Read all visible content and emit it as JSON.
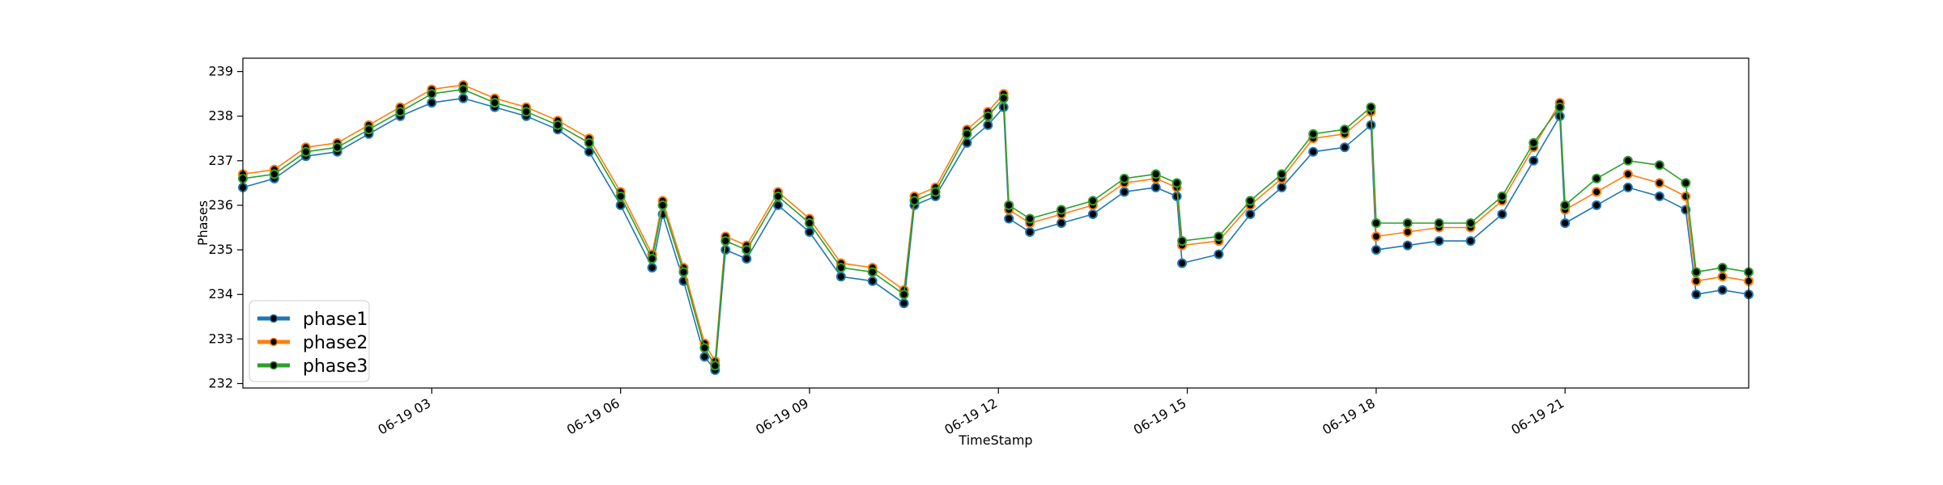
{
  "chart_data": {
    "type": "line",
    "title": "",
    "xlabel": "TimeStamp",
    "ylabel": "Phases",
    "x_axis": {
      "start": "06-19 00:00",
      "end": "06-19 23:55",
      "tick_labels": [
        "06-19 03",
        "06-19 06",
        "06-19 09",
        "06-19 12",
        "06-19 15",
        "06-19 18",
        "06-19 21"
      ]
    },
    "ylim": [
      231.9,
      239.3
    ],
    "yticks": [
      232,
      233,
      234,
      235,
      236,
      237,
      238,
      239
    ],
    "grid": false,
    "legend": {
      "placement": "lower-left"
    },
    "series": [
      {
        "name": "phase1",
        "color": "#1f77b4",
        "points": [
          [
            "00:00",
            236.4
          ],
          [
            "00:30",
            236.6
          ],
          [
            "01:00",
            237.1
          ],
          [
            "01:30",
            237.2
          ],
          [
            "02:00",
            237.6
          ],
          [
            "02:30",
            238.0
          ],
          [
            "03:00",
            238.3
          ],
          [
            "03:30",
            238.4
          ],
          [
            "04:00",
            238.2
          ],
          [
            "04:30",
            238.0
          ],
          [
            "05:00",
            237.7
          ],
          [
            "05:30",
            237.2
          ],
          [
            "06:00",
            236.0
          ],
          [
            "06:30",
            234.6
          ],
          [
            "06:40",
            235.8
          ],
          [
            "07:00",
            234.3
          ],
          [
            "07:20",
            232.6
          ],
          [
            "07:30",
            232.3
          ],
          [
            "07:40",
            235.0
          ],
          [
            "08:00",
            234.8
          ],
          [
            "08:30",
            236.0
          ],
          [
            "09:00",
            235.4
          ],
          [
            "09:30",
            234.4
          ],
          [
            "10:00",
            234.3
          ],
          [
            "10:30",
            233.8
          ],
          [
            "10:40",
            236.0
          ],
          [
            "11:00",
            236.2
          ],
          [
            "11:30",
            237.4
          ],
          [
            "11:50",
            237.8
          ],
          [
            "12:05",
            238.2
          ],
          [
            "12:10",
            235.7
          ],
          [
            "12:30",
            235.4
          ],
          [
            "13:00",
            235.6
          ],
          [
            "13:30",
            235.8
          ],
          [
            "14:00",
            236.3
          ],
          [
            "14:30",
            236.4
          ],
          [
            "14:50",
            236.2
          ],
          [
            "14:55",
            234.7
          ],
          [
            "15:30",
            234.9
          ],
          [
            "16:00",
            235.8
          ],
          [
            "16:30",
            236.4
          ],
          [
            "17:00",
            237.2
          ],
          [
            "17:30",
            237.3
          ],
          [
            "17:55",
            237.8
          ],
          [
            "18:00",
            235.0
          ],
          [
            "18:30",
            235.1
          ],
          [
            "19:00",
            235.2
          ],
          [
            "19:30",
            235.2
          ],
          [
            "20:00",
            235.8
          ],
          [
            "20:30",
            237.0
          ],
          [
            "20:55",
            238.0
          ],
          [
            "21:00",
            235.6
          ],
          [
            "21:30",
            236.0
          ],
          [
            "22:00",
            236.4
          ],
          [
            "22:30",
            236.2
          ],
          [
            "22:55",
            235.9
          ],
          [
            "23:05",
            234.0
          ],
          [
            "23:30",
            234.1
          ],
          [
            "23:55",
            234.0
          ]
        ]
      },
      {
        "name": "phase2",
        "color": "#ff7f0e",
        "points": [
          [
            "00:00",
            236.7
          ],
          [
            "00:30",
            236.8
          ],
          [
            "01:00",
            237.3
          ],
          [
            "01:30",
            237.4
          ],
          [
            "02:00",
            237.8
          ],
          [
            "02:30",
            238.2
          ],
          [
            "03:00",
            238.6
          ],
          [
            "03:30",
            238.7
          ],
          [
            "04:00",
            238.4
          ],
          [
            "04:30",
            238.2
          ],
          [
            "05:00",
            237.9
          ],
          [
            "05:30",
            237.5
          ],
          [
            "06:00",
            236.3
          ],
          [
            "06:30",
            234.9
          ],
          [
            "06:40",
            236.1
          ],
          [
            "07:00",
            234.6
          ],
          [
            "07:20",
            232.9
          ],
          [
            "07:30",
            232.5
          ],
          [
            "07:40",
            235.3
          ],
          [
            "08:00",
            235.1
          ],
          [
            "08:30",
            236.3
          ],
          [
            "09:00",
            235.7
          ],
          [
            "09:30",
            234.7
          ],
          [
            "10:00",
            234.6
          ],
          [
            "10:30",
            234.1
          ],
          [
            "10:40",
            236.2
          ],
          [
            "11:00",
            236.4
          ],
          [
            "11:30",
            237.7
          ],
          [
            "11:50",
            238.1
          ],
          [
            "12:05",
            238.5
          ],
          [
            "12:10",
            235.9
          ],
          [
            "12:30",
            235.6
          ],
          [
            "13:00",
            235.8
          ],
          [
            "13:30",
            236.0
          ],
          [
            "14:00",
            236.5
          ],
          [
            "14:30",
            236.6
          ],
          [
            "14:50",
            236.4
          ],
          [
            "14:55",
            235.1
          ],
          [
            "15:30",
            235.2
          ],
          [
            "16:00",
            236.0
          ],
          [
            "16:30",
            236.6
          ],
          [
            "17:00",
            237.5
          ],
          [
            "17:30",
            237.6
          ],
          [
            "17:55",
            238.1
          ],
          [
            "18:00",
            235.3
          ],
          [
            "18:30",
            235.4
          ],
          [
            "19:00",
            235.5
          ],
          [
            "19:30",
            235.5
          ],
          [
            "20:00",
            236.1
          ],
          [
            "20:30",
            237.3
          ],
          [
            "20:55",
            238.3
          ],
          [
            "21:00",
            235.9
          ],
          [
            "21:30",
            236.3
          ],
          [
            "22:00",
            236.7
          ],
          [
            "22:30",
            236.5
          ],
          [
            "22:55",
            236.2
          ],
          [
            "23:05",
            234.3
          ],
          [
            "23:30",
            234.4
          ],
          [
            "23:55",
            234.3
          ]
        ]
      },
      {
        "name": "phase3",
        "color": "#2ca02c",
        "points": [
          [
            "00:00",
            236.6
          ],
          [
            "00:30",
            236.7
          ],
          [
            "01:00",
            237.2
          ],
          [
            "01:30",
            237.3
          ],
          [
            "02:00",
            237.7
          ],
          [
            "02:30",
            238.1
          ],
          [
            "03:00",
            238.5
          ],
          [
            "03:30",
            238.6
          ],
          [
            "04:00",
            238.3
          ],
          [
            "04:30",
            238.1
          ],
          [
            "05:00",
            237.8
          ],
          [
            "05:30",
            237.4
          ],
          [
            "06:00",
            236.2
          ],
          [
            "06:30",
            234.8
          ],
          [
            "06:40",
            236.0
          ],
          [
            "07:00",
            234.5
          ],
          [
            "07:20",
            232.8
          ],
          [
            "07:30",
            232.4
          ],
          [
            "07:40",
            235.2
          ],
          [
            "08:00",
            235.0
          ],
          [
            "08:30",
            236.2
          ],
          [
            "09:00",
            235.6
          ],
          [
            "09:30",
            234.6
          ],
          [
            "10:00",
            234.5
          ],
          [
            "10:30",
            234.0
          ],
          [
            "10:40",
            236.1
          ],
          [
            "11:00",
            236.3
          ],
          [
            "11:30",
            237.6
          ],
          [
            "11:50",
            238.0
          ],
          [
            "12:05",
            238.4
          ],
          [
            "12:10",
            236.0
          ],
          [
            "12:30",
            235.7
          ],
          [
            "13:00",
            235.9
          ],
          [
            "13:30",
            236.1
          ],
          [
            "14:00",
            236.6
          ],
          [
            "14:30",
            236.7
          ],
          [
            "14:50",
            236.5
          ],
          [
            "14:55",
            235.2
          ],
          [
            "15:30",
            235.3
          ],
          [
            "16:00",
            236.1
          ],
          [
            "16:30",
            236.7
          ],
          [
            "17:00",
            237.6
          ],
          [
            "17:30",
            237.7
          ],
          [
            "17:55",
            238.2
          ],
          [
            "18:00",
            235.6
          ],
          [
            "18:30",
            235.6
          ],
          [
            "19:00",
            235.6
          ],
          [
            "19:30",
            235.6
          ],
          [
            "20:00",
            236.2
          ],
          [
            "20:30",
            237.4
          ],
          [
            "20:55",
            238.2
          ],
          [
            "21:00",
            236.0
          ],
          [
            "21:30",
            236.6
          ],
          [
            "22:00",
            237.0
          ],
          [
            "22:30",
            236.9
          ],
          [
            "22:55",
            236.5
          ],
          [
            "23:05",
            234.5
          ],
          [
            "23:30",
            234.6
          ],
          [
            "23:55",
            234.5
          ]
        ]
      }
    ]
  }
}
